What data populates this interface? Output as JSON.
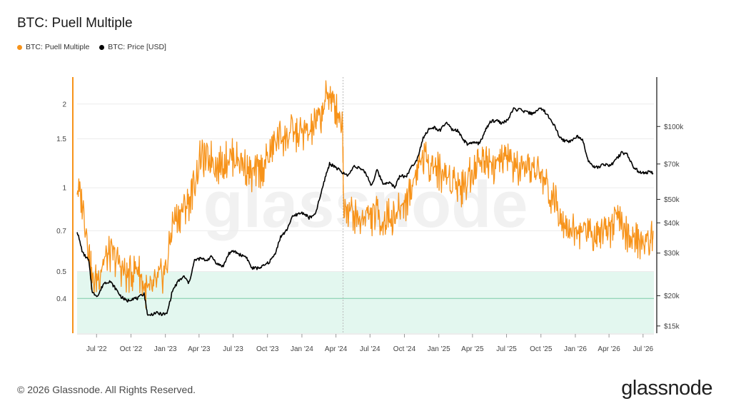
{
  "header": {
    "title": "BTC: Puell Multiple"
  },
  "legend": [
    {
      "label": "BTC: Puell Multiple",
      "color": "#f7931a"
    },
    {
      "label": "BTC: Price [USD]",
      "color": "#000000"
    }
  ],
  "watermark": "glassnode",
  "footer": {
    "copyright": "© 2026 Glassnode. All Rights Reserved.",
    "brand": "glassnode"
  },
  "chart_data": {
    "type": "line",
    "title": "BTC: Puell Multiple",
    "x_range": [
      "2022-05-10",
      "2026-07-30"
    ],
    "x_tick_labels": [
      {
        "date": "2022-07-01",
        "label": "Jul '22"
      },
      {
        "date": "2022-10-01",
        "label": "Oct '22"
      },
      {
        "date": "2023-01-01",
        "label": "Jan '23"
      },
      {
        "date": "2023-04-01",
        "label": "Apr '23"
      },
      {
        "date": "2023-07-01",
        "label": "Jul '23"
      },
      {
        "date": "2023-10-01",
        "label": "Oct '23"
      },
      {
        "date": "2024-01-01",
        "label": "Jan '24"
      },
      {
        "date": "2024-04-01",
        "label": "Apr '24"
      },
      {
        "date": "2024-07-01",
        "label": "Jul '24"
      },
      {
        "date": "2024-10-01",
        "label": "Oct '24"
      },
      {
        "date": "2025-01-01",
        "label": "Jan '25"
      },
      {
        "date": "2025-04-01",
        "label": "Apr '25"
      },
      {
        "date": "2025-07-01",
        "label": "Jul '25"
      },
      {
        "date": "2025-10-01",
        "label": "Oct '25"
      },
      {
        "date": "2026-01-01",
        "label": "Jan '26"
      },
      {
        "date": "2026-04-01",
        "label": "Apr '26"
      },
      {
        "date": "2026-07-01",
        "label": "Jul '26"
      }
    ],
    "y_left": {
      "scale": "log",
      "range": [
        0.3,
        2.5
      ],
      "ticks": [
        0.4,
        0.5,
        0.7,
        1,
        1.5,
        2
      ],
      "tick_labels": [
        "0.4",
        "0.5",
        "0.7",
        "1",
        "1.5",
        "2"
      ]
    },
    "y_right": {
      "scale": "log",
      "range": [
        14000,
        160000
      ],
      "ticks": [
        15000,
        20000,
        30000,
        40000,
        50000,
        70000,
        100000
      ],
      "tick_labels": [
        "$15k",
        "$20k",
        "$30k",
        "$40k",
        "$50k",
        "$70k",
        "$100k"
      ]
    },
    "shaded_band": {
      "axis": "left",
      "from": 0.3,
      "to": 0.5,
      "color": "#e3f7ef"
    },
    "reference_line": {
      "axis": "left",
      "value": 0.4,
      "color": "#4fc08d"
    },
    "event_marker": {
      "date": "2024-04-20",
      "style": "dotted"
    },
    "grid": true,
    "legend_position": "top-left",
    "series": [
      {
        "name": "BTC: Puell Multiple",
        "axis": "left",
        "color": "#f7931a",
        "x": [
          "2022-05-10",
          "2022-05-25",
          "2022-06-10",
          "2022-06-20",
          "2022-07-05",
          "2022-07-20",
          "2022-08-05",
          "2022-08-20",
          "2022-09-05",
          "2022-09-20",
          "2022-10-05",
          "2022-10-20",
          "2022-11-05",
          "2022-11-20",
          "2022-12-05",
          "2022-12-20",
          "2023-01-05",
          "2023-01-20",
          "2023-02-05",
          "2023-02-20",
          "2023-03-05",
          "2023-03-20",
          "2023-04-05",
          "2023-04-20",
          "2023-05-05",
          "2023-05-20",
          "2023-06-05",
          "2023-06-20",
          "2023-07-05",
          "2023-07-20",
          "2023-08-05",
          "2023-08-20",
          "2023-09-05",
          "2023-09-20",
          "2023-10-05",
          "2023-10-20",
          "2023-11-05",
          "2023-11-20",
          "2023-12-05",
          "2023-12-20",
          "2024-01-05",
          "2024-01-20",
          "2024-02-05",
          "2024-02-20",
          "2024-03-05",
          "2024-03-15",
          "2024-03-25",
          "2024-04-05",
          "2024-04-19",
          "2024-04-21",
          "2024-05-05",
          "2024-05-20",
          "2024-06-05",
          "2024-06-20",
          "2024-07-05",
          "2024-07-20",
          "2024-08-05",
          "2024-08-20",
          "2024-09-05",
          "2024-09-20",
          "2024-10-05",
          "2024-10-20",
          "2024-11-05",
          "2024-11-20",
          "2024-12-05",
          "2024-12-20",
          "2025-01-05",
          "2025-01-20",
          "2025-02-05",
          "2025-02-20",
          "2025-03-05",
          "2025-03-20",
          "2025-04-05",
          "2025-04-20",
          "2025-05-05",
          "2025-05-20",
          "2025-06-05",
          "2025-06-20",
          "2025-07-05",
          "2025-07-20",
          "2025-08-05",
          "2025-08-20",
          "2025-09-05",
          "2025-09-20",
          "2025-10-05",
          "2025-10-20",
          "2025-11-05",
          "2025-11-20",
          "2025-12-05",
          "2025-12-20",
          "2026-01-05",
          "2026-01-20",
          "2026-02-05",
          "2026-02-20",
          "2026-03-05",
          "2026-03-20",
          "2026-04-05",
          "2026-04-20",
          "2026-05-05",
          "2026-05-20",
          "2026-06-05",
          "2026-06-20",
          "2026-07-05",
          "2026-07-20",
          "2026-07-28"
        ],
        "values": [
          1.0,
          0.88,
          0.62,
          0.45,
          0.48,
          0.55,
          0.58,
          0.56,
          0.52,
          0.48,
          0.5,
          0.52,
          0.44,
          0.42,
          0.45,
          0.48,
          0.52,
          0.75,
          0.8,
          0.85,
          0.9,
          1.05,
          1.3,
          1.25,
          1.3,
          1.2,
          1.25,
          1.3,
          1.3,
          1.25,
          1.2,
          1.1,
          1.15,
          1.2,
          1.3,
          1.45,
          1.55,
          1.5,
          1.6,
          1.55,
          1.6,
          1.55,
          1.7,
          1.8,
          2.1,
          2.2,
          2.0,
          1.9,
          1.7,
          0.9,
          0.85,
          0.8,
          0.75,
          0.82,
          0.78,
          0.82,
          0.75,
          0.8,
          0.78,
          0.85,
          0.9,
          1.0,
          1.2,
          1.3,
          1.25,
          1.2,
          1.15,
          1.1,
          1.1,
          1.05,
          1.0,
          1.1,
          1.2,
          1.25,
          1.3,
          1.25,
          1.2,
          1.25,
          1.3,
          1.2,
          1.15,
          1.1,
          1.2,
          1.15,
          1.1,
          1.0,
          0.9,
          0.85,
          0.75,
          0.72,
          0.68,
          0.7,
          0.72,
          0.68,
          0.7,
          0.75,
          0.72,
          0.8,
          0.72,
          0.68,
          0.64,
          0.66,
          0.62,
          0.65,
          0.7
        ]
      },
      {
        "name": "BTC: Price [USD]",
        "axis": "right",
        "color": "#000000",
        "x": [
          "2022-05-10",
          "2022-05-25",
          "2022-06-10",
          "2022-06-20",
          "2022-07-05",
          "2022-07-20",
          "2022-08-05",
          "2022-08-20",
          "2022-09-05",
          "2022-09-20",
          "2022-10-05",
          "2022-10-20",
          "2022-11-05",
          "2022-11-15",
          "2022-12-05",
          "2022-12-20",
          "2023-01-05",
          "2023-01-20",
          "2023-02-05",
          "2023-02-20",
          "2023-03-05",
          "2023-03-20",
          "2023-04-05",
          "2023-04-20",
          "2023-05-05",
          "2023-05-20",
          "2023-06-05",
          "2023-06-20",
          "2023-07-05",
          "2023-07-20",
          "2023-08-05",
          "2023-08-20",
          "2023-09-05",
          "2023-09-20",
          "2023-10-05",
          "2023-10-20",
          "2023-11-05",
          "2023-11-20",
          "2023-12-05",
          "2023-12-20",
          "2024-01-05",
          "2024-01-20",
          "2024-02-05",
          "2024-02-20",
          "2024-03-05",
          "2024-03-15",
          "2024-03-25",
          "2024-04-05",
          "2024-04-20",
          "2024-05-05",
          "2024-05-20",
          "2024-06-05",
          "2024-06-20",
          "2024-07-05",
          "2024-07-20",
          "2024-08-05",
          "2024-08-20",
          "2024-09-05",
          "2024-09-20",
          "2024-10-05",
          "2024-10-20",
          "2024-11-05",
          "2024-11-20",
          "2024-12-05",
          "2024-12-20",
          "2025-01-05",
          "2025-01-20",
          "2025-02-05",
          "2025-02-20",
          "2025-03-05",
          "2025-03-20",
          "2025-04-05",
          "2025-04-20",
          "2025-05-05",
          "2025-05-20",
          "2025-06-05",
          "2025-06-20",
          "2025-07-05",
          "2025-07-20",
          "2025-08-05",
          "2025-08-20",
          "2025-09-05",
          "2025-09-20",
          "2025-10-05",
          "2025-10-20",
          "2025-11-05",
          "2025-11-20",
          "2025-12-05",
          "2025-12-20",
          "2026-01-05",
          "2026-01-20",
          "2026-02-05",
          "2026-02-20",
          "2026-03-05",
          "2026-03-20",
          "2026-04-05",
          "2026-04-20",
          "2026-05-05",
          "2026-05-20",
          "2026-06-05",
          "2026-06-20",
          "2026-07-05",
          "2026-07-20",
          "2026-07-28"
        ],
        "values": [
          37000,
          30000,
          28000,
          20500,
          20000,
          22500,
          23000,
          21500,
          19800,
          19000,
          19500,
          19500,
          20500,
          16500,
          17000,
          16800,
          16800,
          21000,
          23000,
          24000,
          22500,
          28000,
          28500,
          28000,
          29000,
          27000,
          26500,
          30000,
          30500,
          29500,
          29000,
          26000,
          26000,
          26500,
          27500,
          29500,
          35000,
          37000,
          42000,
          43500,
          44000,
          42000,
          43000,
          52000,
          63000,
          70000,
          69000,
          67000,
          64000,
          63000,
          69000,
          67000,
          64000,
          57000,
          66000,
          58000,
          59000,
          56000,
          63000,
          62000,
          68000,
          74000,
          90000,
          97000,
          99000,
          96000,
          104000,
          97000,
          96000,
          89000,
          84000,
          86000,
          85000,
          96000,
          105000,
          106000,
          103000,
          107000,
          118000,
          117000,
          115000,
          113000,
          116000,
          119000,
          110000,
          102000,
          90000,
          87000,
          87000,
          91000,
          89000,
          72000,
          68000,
          68000,
          70000,
          69000,
          73000,
          78000,
          77000,
          68000,
          65000,
          64000,
          65000,
          64000
        ]
      }
    ]
  }
}
